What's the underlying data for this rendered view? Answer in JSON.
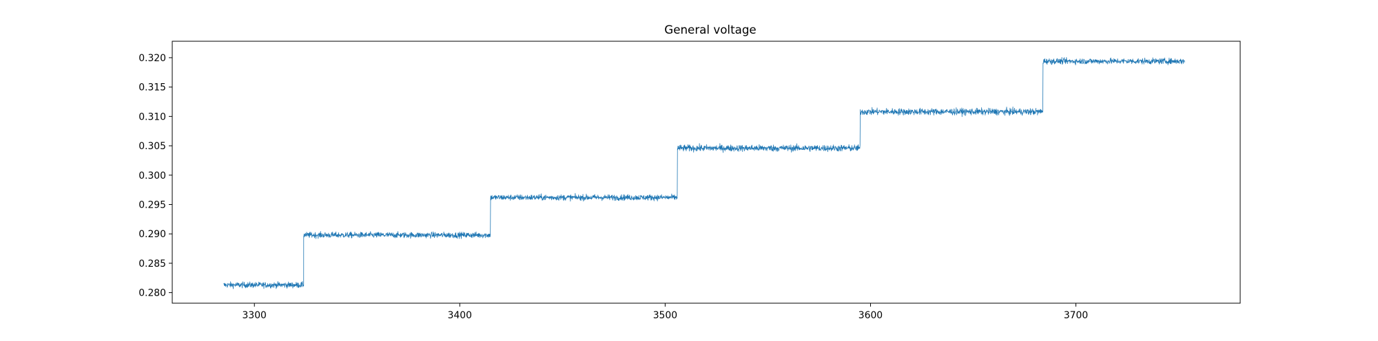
{
  "chart_data": {
    "type": "line",
    "title": "General voltage",
    "xlabel": "",
    "ylabel": "",
    "xlim": [
      3260,
      3780
    ],
    "ylim": [
      0.2782,
      0.3228
    ],
    "x_ticks": [
      3300,
      3400,
      3500,
      3600,
      3700
    ],
    "x_tick_labels": [
      "3300",
      "3400",
      "3500",
      "3600",
      "3700"
    ],
    "y_ticks": [
      0.28,
      0.285,
      0.29,
      0.295,
      0.3,
      0.305,
      0.31,
      0.315,
      0.32
    ],
    "y_tick_labels": [
      "0.280",
      "0.285",
      "0.290",
      "0.295",
      "0.300",
      "0.305",
      "0.310",
      "0.315",
      "0.320"
    ],
    "grid": false,
    "legend": "none",
    "line_color": "#1f77b4",
    "series": [
      {
        "steps": [
          {
            "x_start": 3285,
            "x_end": 3324,
            "level": 0.2813,
            "noise": 0.0007
          },
          {
            "x_start": 3324,
            "x_end": 3415,
            "level": 0.2898,
            "noise": 0.0007
          },
          {
            "x_start": 3415,
            "x_end": 3506,
            "level": 0.2962,
            "noise": 0.0007
          },
          {
            "x_start": 3506,
            "x_end": 3595,
            "level": 0.3046,
            "noise": 0.0008
          },
          {
            "x_start": 3595,
            "x_end": 3684,
            "level": 0.3108,
            "noise": 0.0008
          },
          {
            "x_start": 3684,
            "x_end": 3753,
            "level": 0.3194,
            "noise": 0.0007
          }
        ]
      }
    ]
  }
}
